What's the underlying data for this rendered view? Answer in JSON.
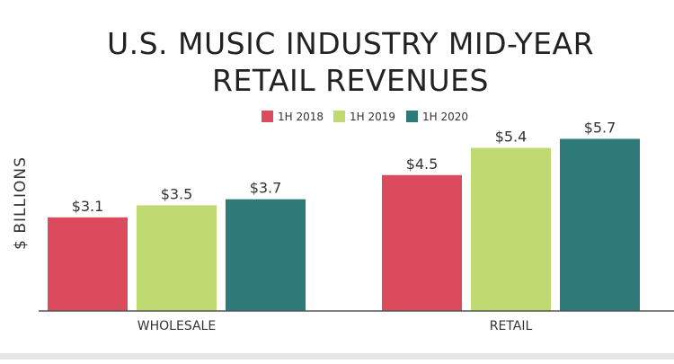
{
  "chart_data": {
    "type": "bar",
    "title_lines": [
      "U.S. MUSIC INDUSTRY MID-YEAR",
      "RETAIL REVENUES"
    ],
    "ylabel": "$ BILLIONS",
    "xlabel": "",
    "categories": [
      "WHOLESALE",
      "RETAIL"
    ],
    "series": [
      {
        "name": "1H 2018",
        "color": "#dc4a5e",
        "values": [
          3.1,
          4.5
        ],
        "labels": [
          "$3.1",
          "$4.5"
        ]
      },
      {
        "name": "1H 2019",
        "color": "#c0da72",
        "values": [
          3.5,
          5.4
        ],
        "labels": [
          "$3.5",
          "$5.4"
        ]
      },
      {
        "name": "1H 2020",
        "color": "#2e7a78",
        "values": [
          3.7,
          5.7
        ],
        "labels": [
          "$3.7",
          "$5.7"
        ]
      }
    ],
    "ylim": [
      0,
      6.5
    ],
    "grid": false,
    "legend_position": "top-center"
  }
}
